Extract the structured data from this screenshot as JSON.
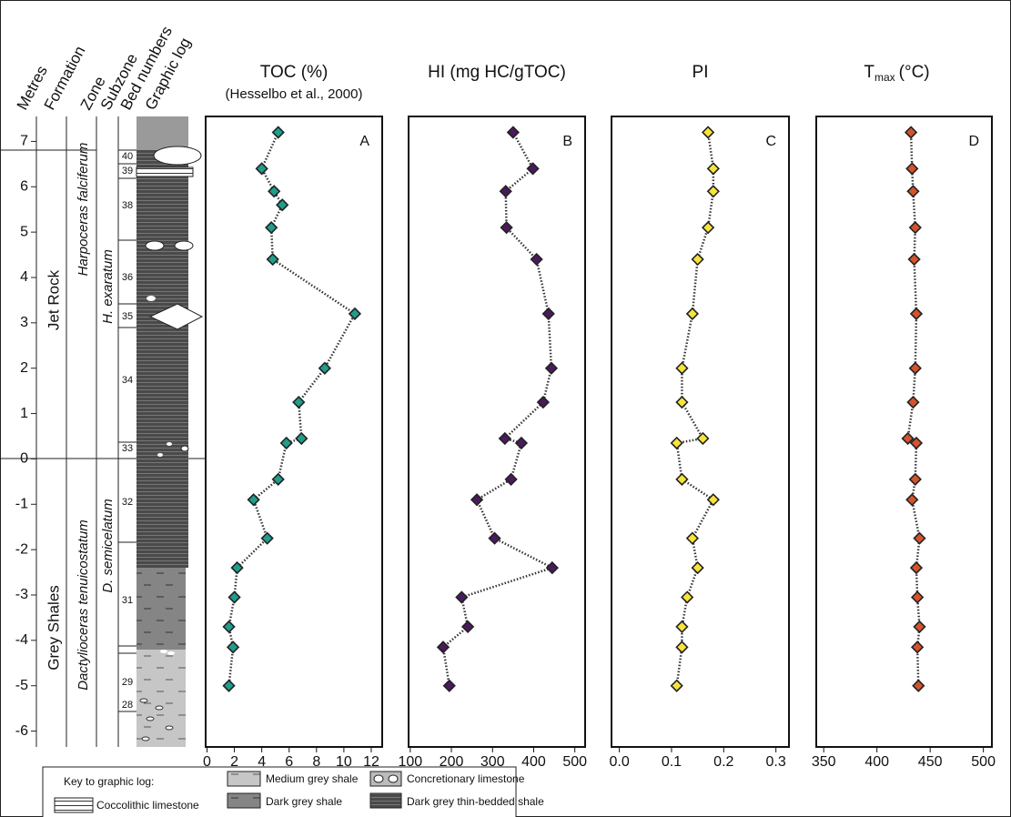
{
  "log": {
    "headers": [
      "Metres",
      "Formation",
      "Zone",
      "Subzone",
      "Bed numbers",
      "Graphic log"
    ],
    "ylim": [
      -6.35,
      7.55
    ],
    "yticks": [
      -6,
      -5,
      -4,
      -3,
      -2,
      -1,
      0,
      1,
      2,
      3,
      4,
      5,
      6,
      7
    ],
    "formations": [
      "Jet Rock",
      "Grey Shales"
    ],
    "zones": [
      "Harpoceras falciferum",
      "Dactylioceras tenuicostatum"
    ],
    "subzones": [
      "H. exaratum",
      "D. semicelatum"
    ],
    "beds": [
      "40",
      "39",
      "38",
      "36",
      "35",
      "34",
      "33",
      "32",
      "31",
      "29",
      "28"
    ]
  },
  "key": {
    "title": "Key to graphic log:",
    "items": [
      "Coccolithic limestone",
      "Medium grey shale",
      "Dark grey shale",
      "Concretionary limestone",
      "Dark grey thin-bedded shale"
    ]
  },
  "chart_data": [
    {
      "type": "profile",
      "title": "TOC (%)",
      "subtitle": "(Hesselbo et al., 2000)",
      "label": "A",
      "color": "#1f9e8c",
      "depths": [
        7.2,
        6.4,
        5.9,
        5.6,
        5.1,
        4.4,
        3.2,
        2.0,
        1.25,
        0.45,
        0.35,
        -0.45,
        -0.9,
        -1.75,
        -2.4,
        -3.05,
        -3.7,
        -4.15,
        -5.0
      ],
      "values": [
        5.2,
        4.0,
        4.9,
        5.5,
        4.7,
        4.8,
        10.8,
        8.6,
        6.7,
        6.9,
        5.8,
        5.2,
        3.4,
        4.4,
        2.2,
        2.0,
        1.6,
        1.9,
        1.6
      ],
      "xlim": [
        -0.1,
        12.8
      ],
      "xticks": [
        0,
        2,
        4,
        6,
        8,
        10,
        12
      ],
      "ylim": [
        -6.35,
        7.55
      ]
    },
    {
      "type": "profile",
      "title": "HI (mg HC/gTOC)",
      "label": "B",
      "color": "#4a1a5c",
      "depths": [
        7.2,
        6.4,
        5.9,
        5.1,
        4.4,
        3.2,
        2.0,
        1.25,
        0.45,
        0.35,
        -0.45,
        -0.9,
        -1.75,
        -2.4,
        -3.05,
        -3.7,
        -4.15,
        -5.0
      ],
      "values": [
        350,
        398,
        332,
        334,
        407,
        436,
        443,
        423,
        330,
        370,
        345,
        262,
        305,
        445,
        225,
        240,
        180,
        195
      ],
      "xlim": [
        96,
        525
      ],
      "xticks": [
        100,
        200,
        300,
        400,
        500
      ],
      "ylim": [
        -6.35,
        7.55
      ]
    },
    {
      "type": "profile",
      "title": "PI",
      "label": "C",
      "color": "#f6e43c",
      "depths": [
        7.2,
        6.4,
        5.9,
        5.1,
        4.4,
        3.2,
        2.0,
        1.25,
        0.45,
        0.35,
        -0.45,
        -0.9,
        -1.75,
        -2.4,
        -3.05,
        -3.7,
        -4.15,
        -5.0
      ],
      "values": [
        0.17,
        0.18,
        0.18,
        0.17,
        0.15,
        0.14,
        0.12,
        0.12,
        0.16,
        0.11,
        0.12,
        0.18,
        0.14,
        0.15,
        0.13,
        0.12,
        0.12,
        0.11
      ],
      "xlim": [
        -0.015,
        0.325
      ],
      "xticks": [
        {
          "value": 0,
          "label": "0.0"
        },
        0.1,
        0.2,
        0.3
      ],
      "ylim": [
        -6.35,
        7.55
      ]
    },
    {
      "type": "profile",
      "title": [
        "T",
        "max",
        "(°C)"
      ],
      "label": "D",
      "color": "#d4532c",
      "depths": [
        7.2,
        6.4,
        5.9,
        5.1,
        4.4,
        3.2,
        2.0,
        1.25,
        0.45,
        0.35,
        -0.45,
        -0.9,
        -1.75,
        -2.4,
        -3.05,
        -3.7,
        -4.15,
        -5.0
      ],
      "values": [
        432,
        433,
        434,
        436,
        435,
        437,
        436,
        434,
        429,
        437,
        436,
        433,
        440,
        437,
        438,
        440,
        438,
        439
      ],
      "xlim": [
        343,
        508
      ],
      "xticks": [
        350,
        400,
        450,
        500
      ],
      "ylim": [
        -6.35,
        7.55
      ]
    }
  ]
}
